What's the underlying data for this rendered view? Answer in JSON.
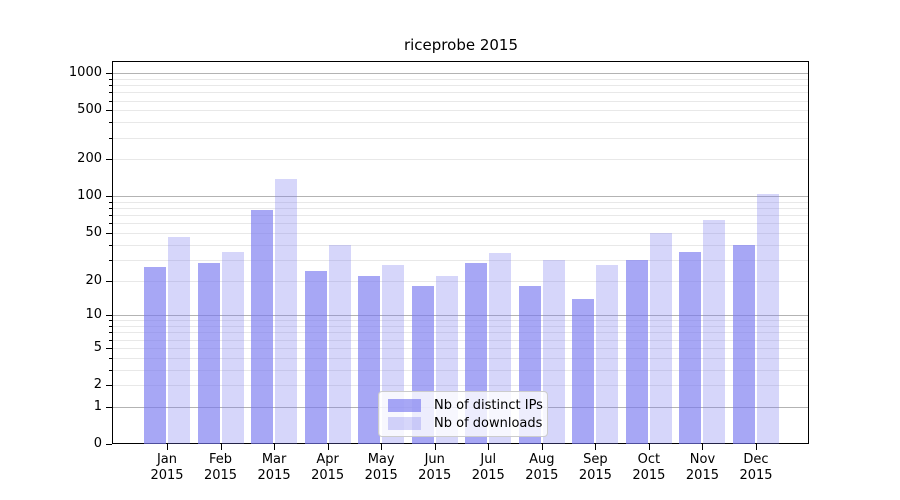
{
  "title": "riceprobe 2015",
  "chart_data": {
    "type": "bar",
    "title": "riceprobe 2015",
    "categories": [
      "Jan",
      "Feb",
      "Mar",
      "Apr",
      "May",
      "Jun",
      "Jul",
      "Aug",
      "Sep",
      "Oct",
      "Nov",
      "Dec"
    ],
    "x_year": "2015",
    "series": [
      {
        "name": "Nb of distinct IPs",
        "color": "rgba(120,120,240,0.65)",
        "values": [
          26,
          28,
          77,
          24,
          22,
          18,
          28,
          18,
          14,
          30,
          35,
          40
        ]
      },
      {
        "name": "Nb of downloads",
        "color": "rgba(120,120,240,0.30)",
        "values": [
          46,
          35,
          138,
          40,
          27,
          22,
          34,
          30,
          27,
          50,
          64,
          105
        ]
      }
    ],
    "y_axis": {
      "scale": "log1p",
      "ticks": [
        0,
        1,
        2,
        5,
        10,
        20,
        50,
        100,
        200,
        500,
        1000
      ],
      "minor_ticks": [
        3,
        4,
        6,
        7,
        8,
        9,
        30,
        40,
        60,
        70,
        80,
        90,
        300,
        400,
        600,
        700,
        800,
        900
      ],
      "top_value": 1230
    },
    "grid": {
      "major_lines_at": [
        1,
        10,
        100,
        1000
      ],
      "major_color": "#b3b3b3",
      "minor_color": "#e8e8e8"
    },
    "legend_position": "lower center"
  }
}
